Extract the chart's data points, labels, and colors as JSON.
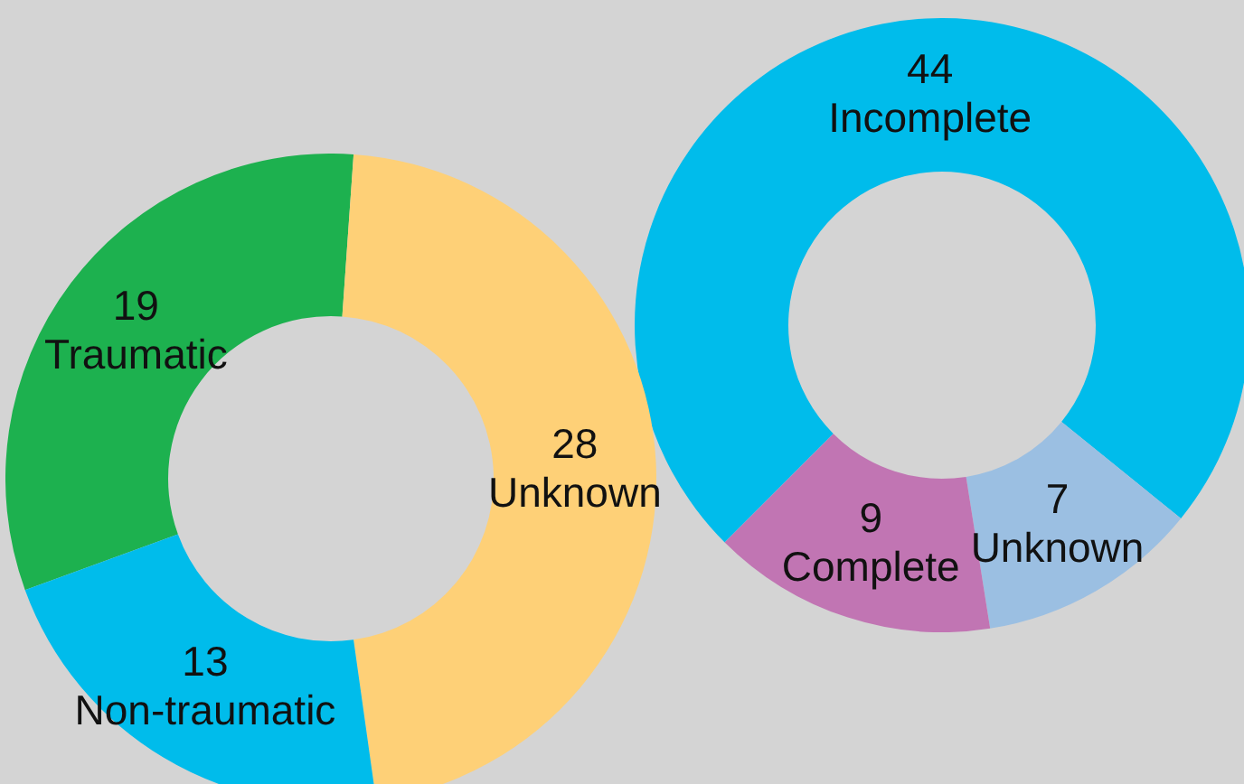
{
  "chart_data": [
    {
      "type": "donut",
      "categories": [
        "Traumatic",
        "Unknown",
        "Non-traumatic"
      ],
      "values": [
        19,
        28,
        13
      ],
      "colors": [
        "#1db14f",
        "#fed077",
        "#00bceb"
      ],
      "data_labels": true
    },
    {
      "type": "donut",
      "categories": [
        "Incomplete",
        "Unknown",
        "Complete"
      ],
      "values": [
        44,
        7,
        9
      ],
      "colors": [
        "#00bceb",
        "#9bbfe2",
        "#c175b3"
      ],
      "data_labels": true
    }
  ]
}
